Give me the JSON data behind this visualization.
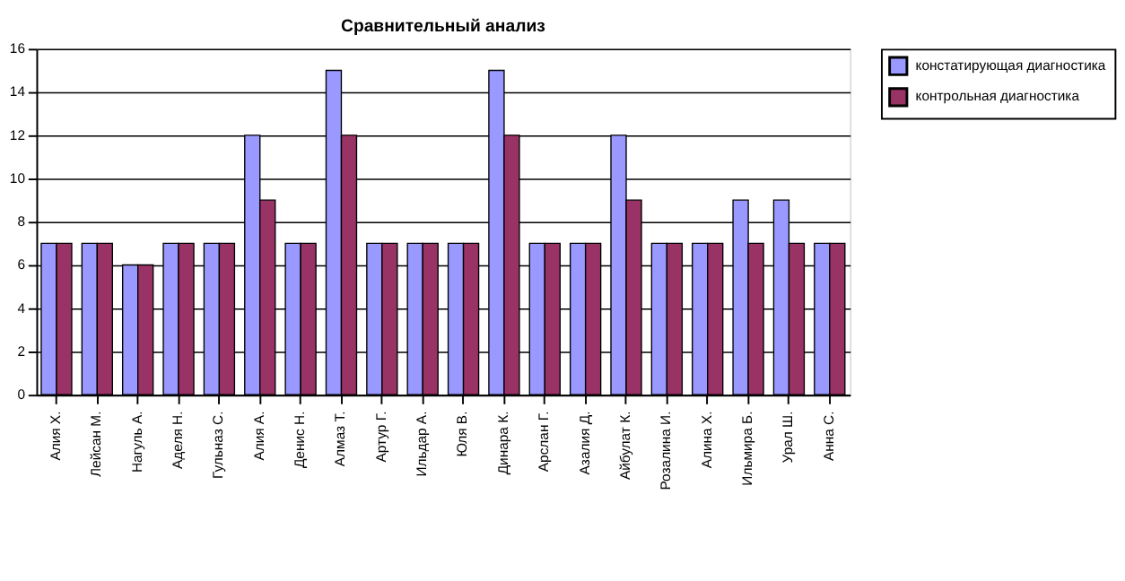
{
  "chart_data": {
    "type": "bar",
    "title": "Сравнительный анализ",
    "categories": [
      "Алия Х.",
      "Лейсан М.",
      "Нагуль А.",
      "Аделя Н.",
      "Гульназ С.",
      "Алия А.",
      "Денис Н.",
      "Алмаз Т.",
      "Артур Г.",
      "Ильдар А.",
      "Юля В.",
      "Динара К.",
      "Арслан Г.",
      "Азалия Д.",
      "Айбулат К.",
      "Розалина И.",
      "Алина Х.",
      "Ильмира Б.",
      "Урал Ш.",
      "Анна С."
    ],
    "series": [
      {
        "name": "констатирующая диагностика",
        "color": "#9999ff",
        "values": [
          7,
          7,
          6,
          7,
          7,
          12,
          7,
          15,
          7,
          7,
          7,
          15,
          7,
          7,
          12,
          7,
          7,
          9,
          9,
          7
        ]
      },
      {
        "name": "контрольная диагностика",
        "color": "#993366",
        "values": [
          7,
          7,
          6,
          7,
          7,
          9,
          7,
          12,
          7,
          7,
          7,
          12,
          7,
          7,
          9,
          7,
          7,
          7,
          7,
          7
        ]
      }
    ],
    "ylim": [
      0,
      16
    ],
    "yticks": [
      0,
      2,
      4,
      6,
      8,
      10,
      12,
      14,
      16
    ],
    "grid": "y",
    "legend": "right"
  }
}
